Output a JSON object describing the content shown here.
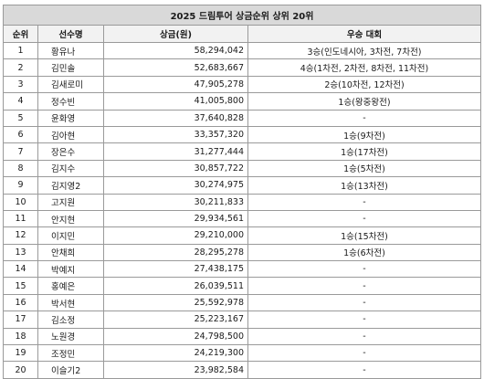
{
  "title": "2025 드림투어 상금순위 상위 20위",
  "headers": {
    "rank": "순위",
    "name": "선수명",
    "prize": "상금(원)",
    "wins": "우승 대회"
  },
  "rows": [
    {
      "rank": "1",
      "name": "황유나",
      "prize": "58,294,042",
      "wins": "3승(인도네시아, 3차전, 7차전)"
    },
    {
      "rank": "2",
      "name": "김민솔",
      "prize": "52,683,667",
      "wins": "4승(1차전, 2차전, 8차전, 11차전)"
    },
    {
      "rank": "3",
      "name": "김새로미",
      "prize": "47,905,278",
      "wins": "2승(10차전, 12차전)"
    },
    {
      "rank": "4",
      "name": "정수빈",
      "prize": "41,005,800",
      "wins": "1승(왕중왕전)"
    },
    {
      "rank": "5",
      "name": "윤화영",
      "prize": "37,640,828",
      "wins": "-"
    },
    {
      "rank": "6",
      "name": "김아현",
      "prize": "33,357,320",
      "wins": "1승(9차전)"
    },
    {
      "rank": "7",
      "name": "장은수",
      "prize": "31,277,444",
      "wins": "1승(17차전)"
    },
    {
      "rank": "8",
      "name": "김지수",
      "prize": "30,857,722",
      "wins": "1승(5차전)"
    },
    {
      "rank": "9",
      "name": "김지영2",
      "prize": "30,274,975",
      "wins": "1승(13차전)"
    },
    {
      "rank": "10",
      "name": "고지원",
      "prize": "30,211,833",
      "wins": "-"
    },
    {
      "rank": "11",
      "name": "안지현",
      "prize": "29,934,561",
      "wins": "-"
    },
    {
      "rank": "12",
      "name": "이지민",
      "prize": "29,210,000",
      "wins": "1승(15차전)"
    },
    {
      "rank": "13",
      "name": "안채희",
      "prize": "28,295,278",
      "wins": "1승(6차전)"
    },
    {
      "rank": "14",
      "name": "박예지",
      "prize": "27,438,175",
      "wins": "-"
    },
    {
      "rank": "15",
      "name": "홍예은",
      "prize": "26,039,511",
      "wins": "-"
    },
    {
      "rank": "16",
      "name": "박서현",
      "prize": "25,592,978",
      "wins": "-"
    },
    {
      "rank": "17",
      "name": "김소정",
      "prize": "25,223,167",
      "wins": "-"
    },
    {
      "rank": "18",
      "name": "노원경",
      "prize": "24,798,500",
      "wins": "-"
    },
    {
      "rank": "19",
      "name": "조정민",
      "prize": "24,219,300",
      "wins": "-"
    },
    {
      "rank": "20",
      "name": "이슬기2",
      "prize": "23,982,584",
      "wins": "-"
    }
  ]
}
